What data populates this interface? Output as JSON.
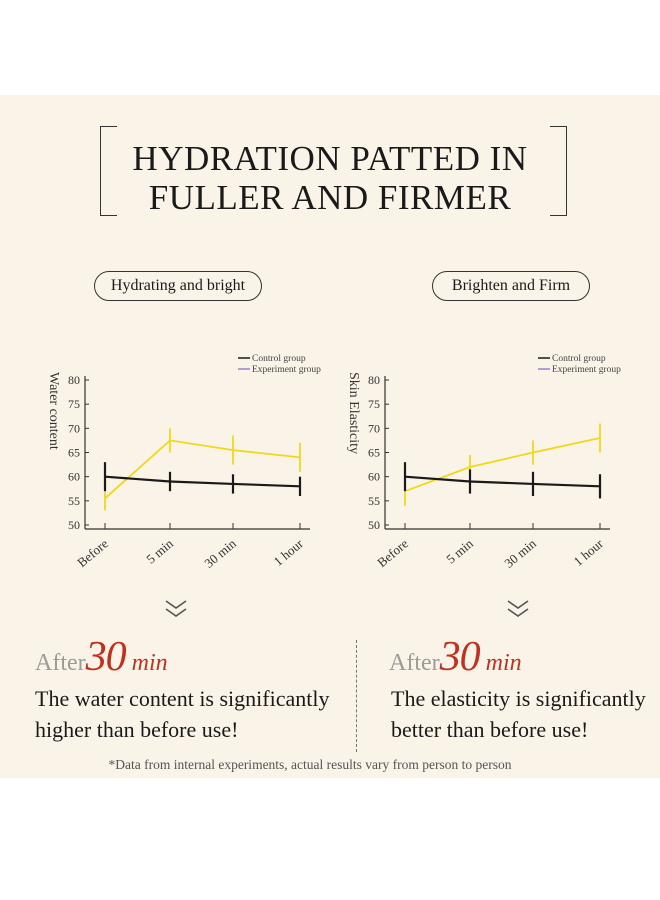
{
  "title": {
    "line1": "HYDRATION PATTED IN",
    "line2": "FULLER AND FIRMER"
  },
  "footnote": "*Data from internal experiments, actual results vary from person to person",
  "chart_data": [
    {
      "type": "line",
      "badge": "Hydrating and bright",
      "ylabel": "Water content",
      "xlabel": "",
      "categories": [
        "Before",
        "5 min",
        "30 min",
        "1 hour"
      ],
      "yticks": [
        "80",
        "75",
        "70",
        "65",
        "60",
        "55",
        "50"
      ],
      "ylim": [
        50,
        80
      ],
      "legend": [
        "Control group",
        "Experiment group"
      ],
      "series": [
        {
          "name": "Control group",
          "color": "#1a1a1a",
          "values": [
            60,
            59,
            58.5,
            58
          ],
          "error": [
            3,
            2,
            2,
            2
          ]
        },
        {
          "name": "Experiment group",
          "color": "#f0d818",
          "values": [
            55.5,
            67.5,
            65.5,
            64
          ],
          "error": [
            2.5,
            2.5,
            3,
            3
          ]
        }
      ]
    },
    {
      "type": "line",
      "badge": "Brighten and Firm",
      "ylabel": "Skin Elasticity",
      "xlabel": "",
      "categories": [
        "Before",
        "5 min",
        "30 min",
        "1 hour"
      ],
      "yticks": [
        "80",
        "75",
        "70",
        "65",
        "60",
        "55",
        "50"
      ],
      "ylim": [
        50,
        80
      ],
      "legend": [
        "Control group",
        "Experiment group"
      ],
      "series": [
        {
          "name": "Control group",
          "color": "#1a1a1a",
          "values": [
            60,
            59,
            58.5,
            58
          ],
          "error": [
            3,
            2.5,
            2.5,
            2.5
          ]
        },
        {
          "name": "Experiment group",
          "color": "#f0d818",
          "values": [
            57,
            62,
            65,
            68
          ],
          "error": [
            3,
            2.5,
            2.5,
            3
          ]
        }
      ]
    }
  ],
  "results": [
    {
      "after_label": "After",
      "number": "30",
      "unit": "min",
      "line1": "The water content is significantly",
      "line2": "higher than before use!"
    },
    {
      "after_label": "After",
      "number": "30",
      "unit": "min",
      "line1": "The elasticity is significantly",
      "line2": "better than before use!"
    }
  ],
  "colors": {
    "background": "#faf3e8",
    "accent": "#c0321e",
    "experiment": "#f0d818",
    "control": "#1a1a1a",
    "legend_experiment": "#9b7fd4"
  }
}
